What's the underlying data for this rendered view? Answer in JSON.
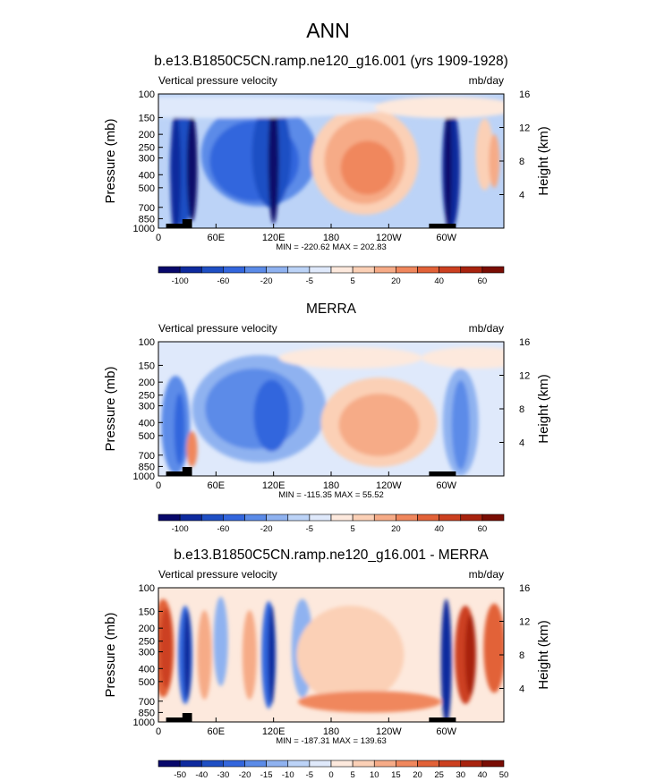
{
  "main_title": "ANN",
  "colors": {
    "contour_scale_1": [
      "#08086b",
      "#0e2a9e",
      "#1f4fc4",
      "#3366dd",
      "#5b8be8",
      "#8fb2f0",
      "#bcd3f7",
      "#dfe9fb",
      "#fde9dd",
      "#fbd0b6",
      "#f6ab87",
      "#f0875d",
      "#e26238",
      "#cc4020",
      "#a8230e",
      "#7a0d04"
    ],
    "contour_scale_2": [
      "#08086b",
      "#0e2a9e",
      "#1f4fc4",
      "#3366dd",
      "#5b8be8",
      "#8fb2f0",
      "#bcd3f7",
      "#dfe9fb",
      "#fde9dd",
      "#fbd0b6",
      "#f6ab87",
      "#f0875d",
      "#e26238",
      "#cc4020",
      "#a8230e",
      "#7a0d04"
    ],
    "contour_scale_3": [
      "#08086b",
      "#0e2a9e",
      "#1f4fc4",
      "#3366dd",
      "#5b8be8",
      "#8fb2f0",
      "#bcd3f7",
      "#dfe9fb",
      "#fde9dd",
      "#fbd0b6",
      "#f6ab87",
      "#f0875d",
      "#e26238",
      "#cc4020",
      "#a8230e",
      "#7a0d04"
    ],
    "topography": "#000000"
  },
  "chart_data": [
    {
      "type": "heatmap",
      "title": "b.e13.B1850C5CN.ramp.ne120_g16.001 (yrs 1909-1928)",
      "left_label": "Vertical pressure velocity",
      "right_label": "mb/day",
      "ylabel": "Pressure (mb)",
      "ylabel_right": "Height (km)",
      "x_ticks": [
        "0",
        "60E",
        "120E",
        "180",
        "120W",
        "60W"
      ],
      "y_ticks": [
        "100",
        "150",
        "200",
        "250",
        "300",
        "400",
        "500",
        "700",
        "850",
        "1000"
      ],
      "y_ticks_right": [
        "16",
        "12",
        "8",
        "4"
      ],
      "stats": "MIN = -220.62  MAX = 202.83",
      "colorbar_labels": [
        "-100",
        "-60",
        "-20",
        "-5",
        "5",
        "20",
        "40",
        "60"
      ],
      "colorbar_label_slots": [
        1,
        3,
        5,
        7,
        9,
        11,
        13,
        15
      ]
    },
    {
      "type": "heatmap",
      "title": "MERRA",
      "left_label": "Vertical pressure velocity",
      "right_label": "mb/day",
      "ylabel": "Pressure (mb)",
      "ylabel_right": "Height (km)",
      "x_ticks": [
        "0",
        "60E",
        "120E",
        "180",
        "120W",
        "60W"
      ],
      "y_ticks": [
        "100",
        "150",
        "200",
        "250",
        "300",
        "400",
        "500",
        "700",
        "850",
        "1000"
      ],
      "y_ticks_right": [
        "16",
        "12",
        "8",
        "4"
      ],
      "stats": "MIN = -115.35  MAX =  55.52",
      "colorbar_labels": [
        "-100",
        "-60",
        "-20",
        "-5",
        "5",
        "20",
        "40",
        "60"
      ],
      "colorbar_label_slots": [
        1,
        3,
        5,
        7,
        9,
        11,
        13,
        15
      ]
    },
    {
      "type": "heatmap",
      "title": "b.e13.B1850C5CN.ramp.ne120_g16.001 - MERRA",
      "left_label": "Vertical pressure velocity",
      "right_label": "mb/day",
      "ylabel": "Pressure (mb)",
      "ylabel_right": "Height (km)",
      "x_ticks": [
        "0",
        "60E",
        "120E",
        "180",
        "120W",
        "60W"
      ],
      "y_ticks": [
        "100",
        "150",
        "200",
        "250",
        "300",
        "400",
        "500",
        "700",
        "850",
        "1000"
      ],
      "y_ticks_right": [
        "16",
        "12",
        "8",
        "4"
      ],
      "stats": "MIN = -187.31  MAX = 139.63",
      "colorbar_labels": [
        "-50",
        "-40",
        "-30",
        "-20",
        "-15",
        "-10",
        "-5",
        "0",
        "5",
        "10",
        "15",
        "20",
        "25",
        "30",
        "40",
        "50"
      ],
      "colorbar_label_slots": [
        1,
        2,
        3,
        4,
        5,
        6,
        7,
        8,
        9,
        10,
        11,
        12,
        13,
        14,
        15,
        16
      ]
    }
  ]
}
